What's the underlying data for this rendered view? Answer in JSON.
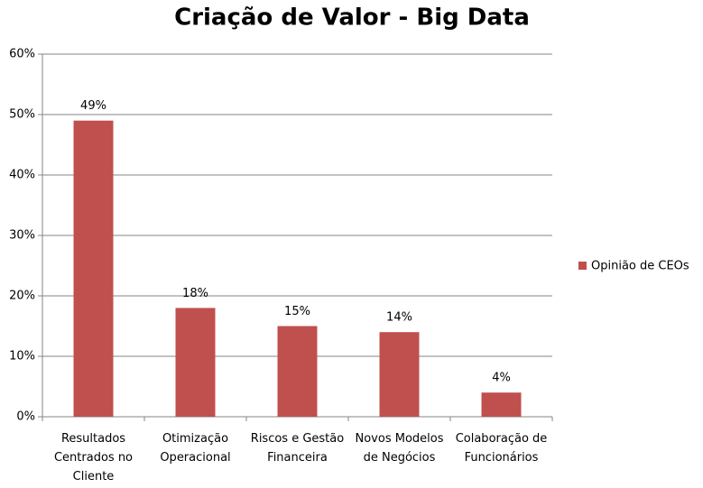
{
  "chart_data": {
    "type": "bar",
    "title": "Criação de Valor - Big Data",
    "categories": [
      "Resultados Centrados no Cliente",
      "Otimização Operacional",
      "Riscos e Gestão Financeira",
      "Novos Modelos de Negócios",
      "Colaboração de Funcionários"
    ],
    "series": [
      {
        "name": "Opinião de CEOs",
        "color": "#c0504d",
        "values": [
          49,
          18,
          15,
          14,
          4
        ],
        "value_labels": [
          "49%",
          "18%",
          "15%",
          "14%",
          "4%"
        ]
      }
    ],
    "ylim": [
      0,
      60
    ],
    "yticks": [
      {
        "value": 0,
        "label": "0%"
      },
      {
        "value": 10,
        "label": "10%"
      },
      {
        "value": 20,
        "label": "20%"
      },
      {
        "value": 30,
        "label": "30%"
      },
      {
        "value": 40,
        "label": "40%"
      },
      {
        "value": 50,
        "label": "50%"
      },
      {
        "value": 60,
        "label": "60%"
      }
    ],
    "grid": true,
    "legend": "right"
  }
}
